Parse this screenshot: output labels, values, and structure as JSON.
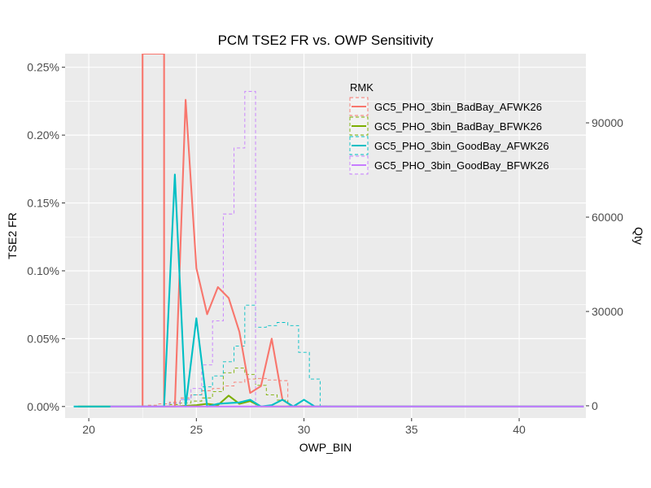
{
  "chart_data": {
    "type": "line",
    "title": "PCM TSE2 FR vs. OWP Sensitivity",
    "xlabel": "OWP_BIN",
    "ylabel": "TSE2 FR",
    "y2label": "Qty",
    "xlim": [
      18.9,
      43.1
    ],
    "ylim": [
      -8.5e-05,
      0.0026
    ],
    "y2lim": [
      -3900,
      112000
    ],
    "x_ticks": [
      20,
      25,
      30,
      35,
      40
    ],
    "x_tick_labels": [
      "20",
      "25",
      "30",
      "35",
      "40"
    ],
    "y_ticks": [
      0,
      0.0005,
      0.001,
      0.0015,
      0.002,
      0.0025
    ],
    "y_tick_labels": [
      "0.00%",
      "0.05%",
      "0.10%",
      "0.15%",
      "0.20%",
      "0.25%"
    ],
    "y2_ticks": [
      0,
      30000,
      60000,
      90000
    ],
    "y2_tick_labels": [
      "0",
      "30000",
      "60000",
      "90000"
    ],
    "grid": true,
    "legend": {
      "title": "RMK",
      "position": "top-right-inside"
    },
    "series": [
      {
        "name": "GC5_PHO_3bin_BadBay_AFWK26",
        "color": "#F8766D",
        "fr": [
          [
            22.5,
            0
          ],
          [
            22.5,
            0.0026
          ],
          [
            23.5,
            0.0026
          ],
          [
            23.5,
            0
          ],
          [
            24,
            0
          ],
          [
            24.5,
            0.00226
          ],
          [
            25,
            0.00102
          ],
          [
            25.5,
            0.00068
          ],
          [
            26,
            0.00088
          ],
          [
            26.5,
            0.0008
          ],
          [
            27,
            0.00055
          ],
          [
            27.5,
            0.0001
          ],
          [
            28,
            0.00015
          ],
          [
            28.5,
            0.0005
          ],
          [
            29,
            5e-05
          ],
          [
            29.5,
            0
          ],
          [
            43,
            0
          ]
        ],
        "qty": [
          [
            22.5,
            0
          ],
          [
            23,
            200
          ],
          [
            23.5,
            600
          ],
          [
            24,
            1200
          ],
          [
            24.5,
            2500
          ],
          [
            25,
            3500
          ],
          [
            25.5,
            4800
          ],
          [
            26,
            5500
          ],
          [
            26.5,
            6300
          ],
          [
            27,
            7500
          ],
          [
            27.5,
            8500
          ],
          [
            28,
            8700
          ],
          [
            28.5,
            8200
          ],
          [
            29,
            8000
          ],
          [
            29.5,
            0
          ]
        ]
      },
      {
        "name": "GC5_PHO_3bin_BadBay_BFWK26",
        "color": "#7CAE00",
        "fr": [
          [
            19.5,
            0
          ],
          [
            24,
            0
          ],
          [
            25,
            1e-05
          ],
          [
            25.5,
            2e-05
          ],
          [
            26,
            1e-05
          ],
          [
            26.5,
            8e-05
          ],
          [
            27,
            2e-05
          ],
          [
            27.5,
            4e-05
          ],
          [
            28,
            0
          ],
          [
            43,
            0
          ]
        ],
        "qty": [
          [
            23.5,
            0
          ],
          [
            24,
            400
          ],
          [
            24.5,
            900
          ],
          [
            25,
            1500
          ],
          [
            25.5,
            2500
          ],
          [
            26,
            4500
          ],
          [
            26.5,
            10500
          ],
          [
            27,
            12000
          ],
          [
            27.5,
            10000
          ],
          [
            28,
            6500
          ],
          [
            28.5,
            3500
          ],
          [
            29,
            1800
          ],
          [
            29.5,
            0
          ]
        ]
      },
      {
        "name": "GC5_PHO_3bin_GoodBay_AFWK26",
        "color": "#00BFC4",
        "fr": [
          [
            19.3,
            0
          ],
          [
            23.5,
            0
          ],
          [
            24,
            0.00171
          ],
          [
            24.5,
            0
          ],
          [
            25,
            0.00065
          ],
          [
            25.5,
            0
          ],
          [
            26,
            2e-05
          ],
          [
            27,
            3e-05
          ],
          [
            27.5,
            5e-05
          ],
          [
            28,
            0
          ],
          [
            28.5,
            1e-05
          ],
          [
            29,
            5e-05
          ],
          [
            29.5,
            0
          ],
          [
            30,
            5e-05
          ],
          [
            30.5,
            0
          ],
          [
            43,
            0
          ]
        ],
        "qty": [
          [
            23.5,
            0
          ],
          [
            24,
            800
          ],
          [
            24.5,
            2000
          ],
          [
            25,
            3500
          ],
          [
            25.5,
            6000
          ],
          [
            26,
            9500
          ],
          [
            26.5,
            14000
          ],
          [
            27,
            19000
          ],
          [
            27.5,
            32000
          ],
          [
            28,
            25000
          ],
          [
            28.5,
            25500
          ],
          [
            29,
            26500
          ],
          [
            29.5,
            25500
          ],
          [
            30,
            17000
          ],
          [
            30.5,
            8500
          ],
          [
            31,
            0
          ]
        ]
      },
      {
        "name": "GC5_PHO_3bin_GoodBay_BFWK26",
        "color": "#C77CFF",
        "fr": [
          [
            21,
            0
          ],
          [
            43,
            0
          ]
        ],
        "qty": [
          [
            23.5,
            0
          ],
          [
            24,
            700
          ],
          [
            24.5,
            2000
          ],
          [
            25,
            5500
          ],
          [
            25.5,
            13000
          ],
          [
            26,
            27000
          ],
          [
            26.5,
            61000
          ],
          [
            27,
            82000
          ],
          [
            27.5,
            100000
          ],
          [
            28,
            0
          ]
        ]
      }
    ]
  }
}
